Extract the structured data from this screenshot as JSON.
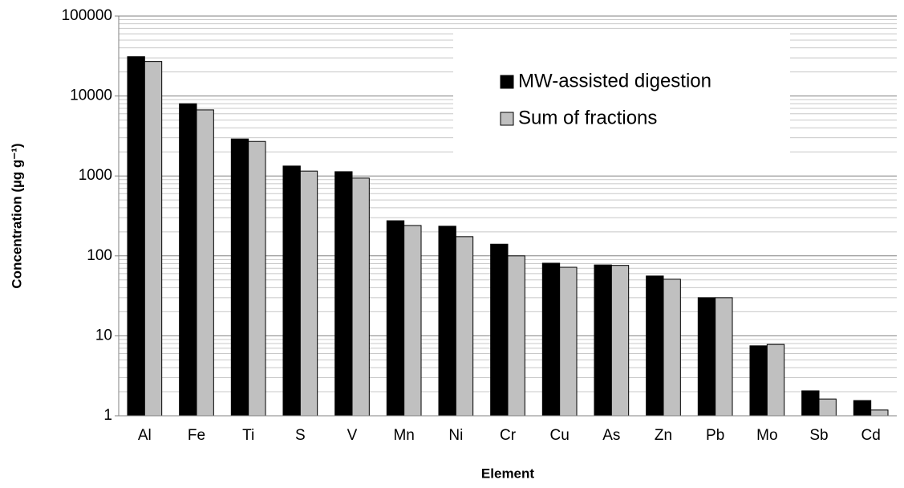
{
  "chart_data": {
    "type": "bar",
    "log_scale": true,
    "grid": true,
    "legend": "top-right",
    "x_label": "Element",
    "y_label": "Concentration (µg g⁻¹)",
    "categories": [
      "Al",
      "Fe",
      "Ti",
      "S",
      "V",
      "Mn",
      "Ni",
      "Cr",
      "Cu",
      "As",
      "Zn",
      "Pb",
      "Mo",
      "Sb",
      "Cd"
    ],
    "series": [
      {
        "name": "MW-assisted digestion",
        "color": "#000000",
        "values": [
          31000,
          8000,
          2900,
          1330,
          1130,
          275,
          235,
          140,
          81,
          77,
          56,
          30,
          7.5,
          2.05,
          1.55
        ]
      },
      {
        "name": "Sum of fractions",
        "color": "#c0c0c0",
        "values": [
          27000,
          6700,
          2700,
          1150,
          940,
          240,
          174,
          100,
          72,
          76,
          51,
          30,
          7.8,
          1.62,
          1.18
        ]
      }
    ],
    "ylim": [
      1,
      100000
    ],
    "yticks": [
      1,
      10,
      100,
      1000,
      10000,
      100000
    ]
  }
}
